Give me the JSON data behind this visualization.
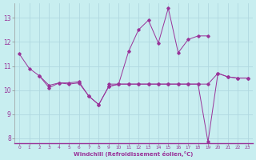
{
  "xlabel": "Windchill (Refroidissement éolien,°C)",
  "background_color": "#c8eef0",
  "grid_color": "#b0d8e0",
  "line_color": "#993399",
  "ylim": [
    7.8,
    13.6
  ],
  "xlim": [
    -0.5,
    23.5
  ],
  "yticks": [
    8,
    9,
    10,
    11,
    12,
    13
  ],
  "xticks": [
    0,
    1,
    2,
    3,
    4,
    5,
    6,
    7,
    8,
    9,
    10,
    11,
    12,
    13,
    14,
    15,
    16,
    17,
    18,
    19,
    20,
    21,
    22,
    23
  ],
  "series1_x": [
    0,
    1,
    2,
    3,
    4,
    5,
    6,
    7,
    8,
    9,
    10,
    11,
    12,
    13,
    14,
    15,
    16,
    17,
    18,
    19
  ],
  "series1_y": [
    11.5,
    10.9,
    10.6,
    10.2,
    10.3,
    10.3,
    10.35,
    9.75,
    9.4,
    10.15,
    10.25,
    11.6,
    12.5,
    12.9,
    11.95,
    13.4,
    11.55,
    12.1,
    12.25,
    12.25
  ],
  "series2_x": [
    9,
    10,
    11,
    12,
    13,
    14,
    15,
    16,
    17,
    18,
    19,
    20,
    21,
    22,
    23
  ],
  "series2_y": [
    10.25,
    10.25,
    10.25,
    10.25,
    10.25,
    10.25,
    10.25,
    10.25,
    10.25,
    10.25,
    10.25,
    10.7,
    10.55,
    10.5,
    10.5
  ],
  "series3_x": [
    2,
    3,
    4,
    5,
    6,
    7,
    8,
    9,
    10,
    11,
    12,
    13,
    14,
    15,
    16,
    17,
    18,
    19,
    20,
    21,
    22,
    23
  ],
  "series3_y": [
    10.6,
    10.1,
    10.3,
    10.25,
    10.3,
    9.75,
    9.4,
    10.15,
    10.25,
    10.25,
    10.25,
    10.25,
    10.25,
    10.25,
    10.25,
    10.25,
    10.25,
    7.85,
    10.7,
    10.55,
    10.5,
    10.5
  ]
}
